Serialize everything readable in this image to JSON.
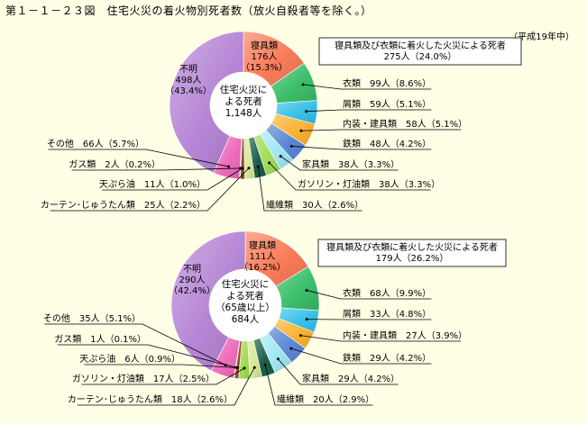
{
  "title": "第１－１－２３図　住宅火災の着火物別死者数（放火自殺者等を除く。）",
  "year_note": "（平成19年中）",
  "colors": {
    "寝具類": "#f97c5a",
    "衣類": "#3cbf6a",
    "屑類": "#39c1e8",
    "内装・建具類": "#fcb334",
    "鉄類": "#5b88d4",
    "家具類": "#a0e8f4",
    "ガソリン・灯油類": "#a3dc57",
    "繊維類": "#1b5f4a",
    "カーテン・じゅうたん類": "#d8e898",
    "天ぷら油": "#8f4b28",
    "ガス類": "#ecd4a0",
    "その他": "#f06cbc",
    "不明": "#b686d6"
  },
  "chart_data": [
    {
      "type": "pie",
      "center_label": [
        "住宅火災に",
        "よる死者",
        "1,148人"
      ],
      "summary_label": [
        "寝具類及び衣類に着火した火災による死者",
        "275人（24.0%）"
      ],
      "slices": [
        {
          "name": "寝具類",
          "value": 176,
          "percent": 15.3,
          "label": "176人",
          "pct_label": "（15.3%）"
        },
        {
          "name": "衣類",
          "value": 99,
          "percent": 8.6,
          "label": "衣類　99人（8.6%）"
        },
        {
          "name": "屑類",
          "value": 59,
          "percent": 5.1,
          "label": "屑類　59人（5.1%）"
        },
        {
          "name": "内装・建具類",
          "value": 58,
          "percent": 5.1,
          "label": "内装・建具類　58人（5.1%）"
        },
        {
          "name": "鉄類",
          "value": 48,
          "percent": 4.2,
          "label": "鉄類　48人（4.2%）"
        },
        {
          "name": "家具類",
          "value": 38,
          "percent": 3.3,
          "label": "家具類　38人（3.3%）"
        },
        {
          "name": "ガソリン・灯油類",
          "value": 38,
          "percent": 3.3,
          "label": "ガソリン・灯油類　38人（3.3%）"
        },
        {
          "name": "繊維類",
          "value": 30,
          "percent": 2.6,
          "label": "繊維類　30人（2.6%）"
        },
        {
          "name": "カーテン・じゅうたん類",
          "value": 25,
          "percent": 2.2,
          "label": "カーテン･じゅうたん類　25人（2.2%）"
        },
        {
          "name": "天ぷら油",
          "value": 11,
          "percent": 1.0,
          "label": "天ぷら油　11人（1.0%）"
        },
        {
          "name": "ガス類",
          "value": 2,
          "percent": 0.2,
          "label": "ガス類　2人（0.2%）"
        },
        {
          "name": "その他",
          "value": 66,
          "percent": 5.7,
          "label": "その他　66人（5.7%）"
        },
        {
          "name": "不明",
          "value": 498,
          "percent": 43.4,
          "label": "498人",
          "pct_label": "（43.4%）"
        }
      ]
    },
    {
      "type": "pie",
      "center_label": [
        "住宅火災に",
        "よる死者",
        "（65歳以上）",
        "684人"
      ],
      "summary_label": [
        "寝具類及び衣類に着火した火災による死者",
        "179人（26.2%）"
      ],
      "slices": [
        {
          "name": "寝具類",
          "value": 111,
          "percent": 16.2,
          "label": "111人",
          "pct_label": "（16.2%）"
        },
        {
          "name": "衣類",
          "value": 68,
          "percent": 9.9,
          "label": "衣類　68人（9.9%）"
        },
        {
          "name": "屑類",
          "value": 33,
          "percent": 4.8,
          "label": "屑類　33人（4.8%）"
        },
        {
          "name": "内装・建具類",
          "value": 27,
          "percent": 3.9,
          "label": "内装・建具類　27人（3.9%）"
        },
        {
          "name": "鉄類",
          "value": 29,
          "percent": 4.2,
          "label": "鉄類　29人（4.2%）"
        },
        {
          "name": "家具類",
          "value": 29,
          "percent": 4.2,
          "label": "家具類　29人（4.2%）"
        },
        {
          "name": "繊維類",
          "value": 20,
          "percent": 2.9,
          "label": "繊維類　20人（2.9%）"
        },
        {
          "name": "カーテン・じゅうたん類",
          "value": 18,
          "percent": 2.6,
          "label": "カーテン･じゅうたん類　18人（2.6%）"
        },
        {
          "name": "ガソリン・灯油類",
          "value": 17,
          "percent": 2.5,
          "label": "ガソリン・灯油類　17人（2.5%）"
        },
        {
          "name": "天ぷら油",
          "value": 6,
          "percent": 0.9,
          "label": "天ぷら油　6人（0.9%）"
        },
        {
          "name": "ガス類",
          "value": 1,
          "percent": 0.1,
          "label": "ガス類　1人（0.1%）"
        },
        {
          "name": "その他",
          "value": 35,
          "percent": 5.1,
          "label": "その他　35人（5.1%）"
        },
        {
          "name": "不明",
          "value": 290,
          "percent": 42.4,
          "label": "290人",
          "pct_label": "（42.4%）"
        }
      ]
    }
  ]
}
